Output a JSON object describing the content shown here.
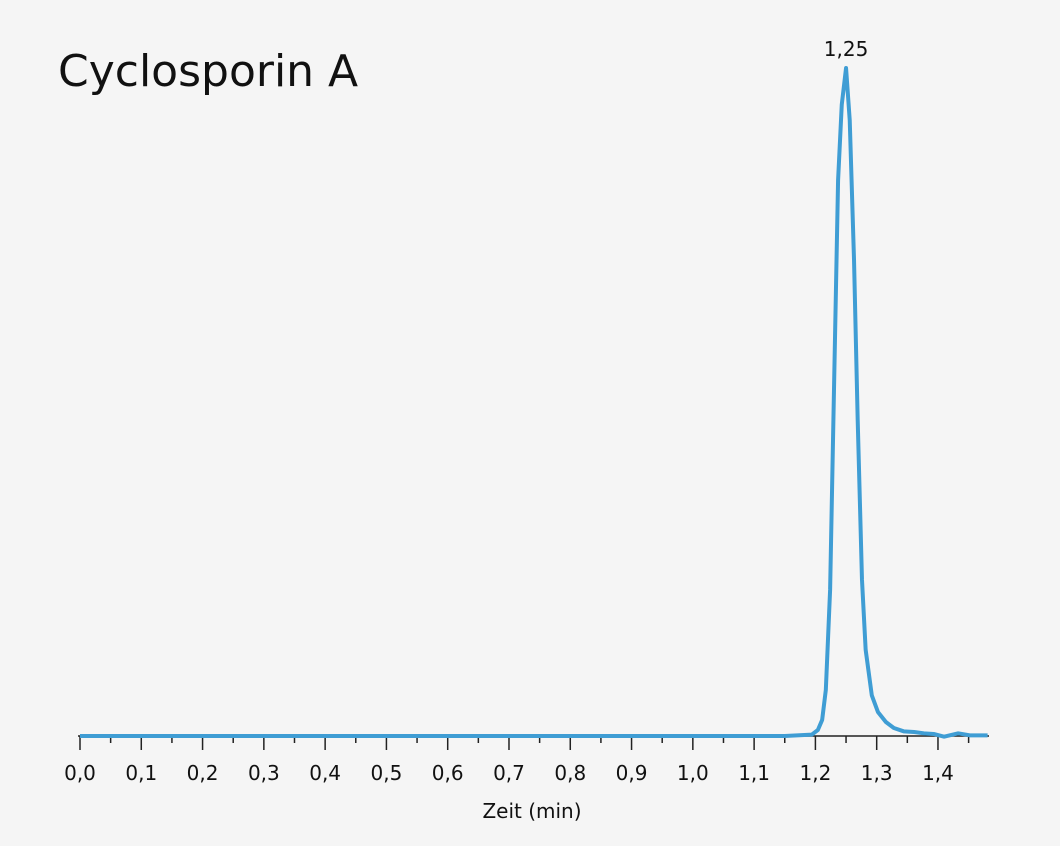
{
  "chart_data": {
    "type": "line",
    "title": "Cyclosporin A",
    "xlabel": "Zeit (min)",
    "x": [
      0,
      1.15,
      1.194,
      1.204,
      1.211,
      1.217,
      1.224,
      1.23,
      1.237,
      1.243,
      1.25,
      1.256,
      1.263,
      1.269,
      1.276,
      1.282,
      1.292,
      1.302,
      1.315,
      1.328,
      1.344,
      1.361,
      1.377,
      1.393,
      1.41,
      1.433,
      1.452,
      1.481
    ],
    "series": [
      {
        "color": "#3f9dd4",
        "values": [
          0,
          0,
          0.2,
          0.9,
          2.4,
          6.9,
          21.9,
          50.3,
          83.2,
          94.5,
          100,
          92.2,
          71.3,
          47.3,
          23.4,
          12.9,
          6.1,
          3.6,
          2.1,
          1.2,
          0.7,
          0.6,
          0.4,
          0.3,
          -0.1,
          0.4,
          0.1,
          0.1
        ]
      }
    ],
    "annotations": [
      {
        "value": 1.25,
        "label": "1,25"
      }
    ],
    "xlim": [
      0,
      1.48
    ],
    "ylim": [
      0,
      100
    ],
    "xticks": [
      {
        "value": 0,
        "label": "0,0"
      },
      {
        "value": 0.1,
        "label": "0,1"
      },
      {
        "value": 0.2,
        "label": "0,2"
      },
      {
        "value": 0.3,
        "label": "0,3"
      },
      {
        "value": 0.4,
        "label": "0,4"
      },
      {
        "value": 0.5,
        "label": "0,5"
      },
      {
        "value": 0.6,
        "label": "0,6"
      },
      {
        "value": 0.7,
        "label": "0,7"
      },
      {
        "value": 0.8,
        "label": "0,8"
      },
      {
        "value": 0.9,
        "label": "0,9"
      },
      {
        "value": 1.0,
        "label": "1,0"
      },
      {
        "value": 1.1,
        "label": "1,1"
      },
      {
        "value": 1.2,
        "label": "1,2"
      },
      {
        "value": 1.3,
        "label": "1,3"
      },
      {
        "value": 1.4,
        "label": "1,4"
      }
    ],
    "xminor_ticks": [
      0.05,
      0.15,
      0.25,
      0.35,
      0.45,
      0.55,
      0.65,
      0.75,
      0.85,
      0.95,
      1.05,
      1.15,
      1.25,
      1.35,
      1.45
    ]
  }
}
